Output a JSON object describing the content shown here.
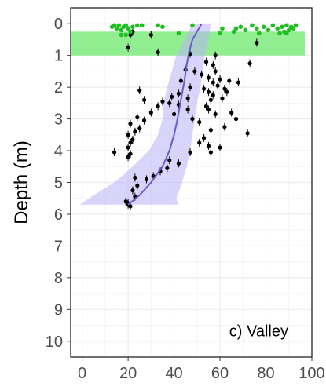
{
  "chart_data": {
    "type": "scatter",
    "panel_label": "c) Valley",
    "ylabel": "Depth (m)",
    "xlabel": "",
    "xlim": [
      -5,
      100
    ],
    "ylim": [
      -0.5,
      10.5
    ],
    "y_reversed": true,
    "x_ticks": [
      0,
      20,
      40,
      60,
      80,
      100
    ],
    "y_ticks": [
      0,
      1,
      2,
      3,
      4,
      5,
      6,
      7,
      8,
      9,
      10
    ],
    "grid": true,
    "band": {
      "y_top": 0.25,
      "y_bottom": 1.0,
      "color": "#90ee90"
    },
    "colors": {
      "surface": "#1fbf1f",
      "subsurface": "#000000",
      "trend": "#6a5acd",
      "ribbon": "#b9b3f5"
    },
    "surface_points": [
      [
        13,
        0.1
      ],
      [
        14,
        0.05
      ],
      [
        15,
        0.15
      ],
      [
        16,
        0.05
      ],
      [
        17,
        0.2
      ],
      [
        18,
        0.1
      ],
      [
        19,
        0.05
      ],
      [
        20,
        0.15
      ],
      [
        21,
        0.25
      ],
      [
        22,
        0.1
      ],
      [
        24,
        0.05
      ],
      [
        26,
        0.05
      ],
      [
        33,
        0.05
      ],
      [
        35,
        0.1
      ],
      [
        42,
        0.3
      ],
      [
        48,
        0.05
      ],
      [
        60,
        0.3
      ],
      [
        61,
        0.15
      ],
      [
        66,
        0.25
      ],
      [
        67,
        0.15
      ],
      [
        69,
        0.1
      ],
      [
        71,
        0.2
      ],
      [
        74,
        0.05
      ],
      [
        76,
        0.15
      ],
      [
        77,
        0.3
      ],
      [
        79,
        0.1
      ],
      [
        81,
        0.2
      ],
      [
        83,
        0.05
      ],
      [
        85,
        0.15
      ],
      [
        86,
        0.3
      ],
      [
        87,
        0.1
      ],
      [
        88,
        0.25
      ],
      [
        89,
        0.05
      ],
      [
        90,
        0.2
      ],
      [
        91,
        0.1
      ],
      [
        92,
        0.15
      ],
      [
        93,
        0.05
      ],
      [
        17,
        0.35
      ],
      [
        19,
        0.35
      ],
      [
        89,
        0.3
      ]
    ],
    "subsurface_points": [
      [
        21,
        0.35
      ],
      [
        22,
        0.25
      ],
      [
        30,
        0.35
      ],
      [
        20,
        0.75
      ],
      [
        76,
        0.6
      ],
      [
        33,
        0.9
      ],
      [
        47,
        0.95
      ],
      [
        58,
        1.0
      ],
      [
        54,
        1.2
      ],
      [
        73,
        1.25
      ],
      [
        57,
        1.3
      ],
      [
        45,
        1.45
      ],
      [
        49,
        1.5
      ],
      [
        58,
        1.5
      ],
      [
        52,
        1.6
      ],
      [
        55,
        1.7
      ],
      [
        60,
        1.75
      ],
      [
        64,
        1.8
      ],
      [
        43,
        1.8
      ],
      [
        57,
        1.85
      ],
      [
        68,
        1.85
      ],
      [
        59,
        1.95
      ],
      [
        47,
        2.0
      ],
      [
        53,
        2.05
      ],
      [
        62,
        2.05
      ],
      [
        55,
        2.15
      ],
      [
        42,
        2.2
      ],
      [
        25,
        2.1
      ],
      [
        63,
        2.15
      ],
      [
        57,
        2.25
      ],
      [
        39,
        2.3
      ],
      [
        46,
        2.35
      ],
      [
        61,
        2.35
      ],
      [
        27,
        2.4
      ],
      [
        56,
        2.4
      ],
      [
        35,
        2.45
      ],
      [
        38,
        2.5
      ],
      [
        42,
        2.55
      ],
      [
        54,
        2.6
      ],
      [
        33,
        2.6
      ],
      [
        46,
        2.7
      ],
      [
        55,
        2.7
      ],
      [
        30,
        2.8
      ],
      [
        40,
        2.85
      ],
      [
        58,
        2.85
      ],
      [
        65,
        2.8
      ],
      [
        24,
        2.95
      ],
      [
        48,
        3.0
      ],
      [
        27,
        3.05
      ],
      [
        67,
        3.0
      ],
      [
        51,
        3.1
      ],
      [
        21,
        3.15
      ],
      [
        62,
        3.25
      ],
      [
        25,
        3.3
      ],
      [
        56,
        3.35
      ],
      [
        23,
        3.4
      ],
      [
        72,
        3.45
      ],
      [
        20,
        3.5
      ],
      [
        53,
        3.6
      ],
      [
        22,
        3.65
      ],
      [
        21,
        3.75
      ],
      [
        51,
        3.75
      ],
      [
        55,
        3.85
      ],
      [
        20,
        3.9
      ],
      [
        60,
        3.9
      ],
      [
        14,
        4.05
      ],
      [
        56,
        4.05
      ],
      [
        21,
        4.1
      ],
      [
        47,
        4.05
      ],
      [
        20,
        4.2
      ],
      [
        38,
        4.3
      ],
      [
        42,
        4.4
      ],
      [
        37,
        4.55
      ],
      [
        34,
        4.65
      ],
      [
        31,
        4.8
      ],
      [
        23,
        4.85
      ],
      [
        28,
        4.9
      ],
      [
        24,
        5.1
      ],
      [
        22,
        5.25
      ],
      [
        23,
        5.45
      ],
      [
        19,
        5.6
      ],
      [
        20,
        5.7
      ],
      [
        21,
        5.75
      ],
      [
        20,
        5.65
      ]
    ],
    "trend_line": [
      [
        52,
        0.0
      ],
      [
        50,
        0.25
      ],
      [
        48,
        0.5
      ],
      [
        46.5,
        0.9
      ],
      [
        45.5,
        1.3
      ],
      [
        44.5,
        1.8
      ],
      [
        43,
        2.4
      ],
      [
        41.5,
        3.0
      ],
      [
        40,
        3.5
      ],
      [
        38,
        4.0
      ],
      [
        35,
        4.5
      ],
      [
        30,
        5.0
      ],
      [
        25,
        5.4
      ],
      [
        20,
        5.7
      ]
    ],
    "ribbon_upper": [
      [
        56,
        0.0
      ],
      [
        55,
        0.5
      ],
      [
        53.5,
        1.0
      ],
      [
        52.5,
        1.5
      ],
      [
        51.5,
        2.0
      ],
      [
        50,
        2.5
      ],
      [
        49,
        3.0
      ],
      [
        48,
        3.5
      ],
      [
        47,
        4.0
      ],
      [
        45.5,
        4.5
      ],
      [
        43.5,
        5.0
      ],
      [
        41,
        5.5
      ],
      [
        42,
        5.7
      ]
    ],
    "ribbon_lower": [
      [
        48,
        0.0
      ],
      [
        44.5,
        0.5
      ],
      [
        41,
        1.0
      ],
      [
        39,
        1.5
      ],
      [
        37,
        2.0
      ],
      [
        35.5,
        2.5
      ],
      [
        35,
        3.0
      ],
      [
        33,
        3.5
      ],
      [
        29,
        4.0
      ],
      [
        22,
        4.5
      ],
      [
        14,
        5.0
      ],
      [
        5,
        5.4
      ],
      [
        -1,
        5.7
      ]
    ]
  }
}
